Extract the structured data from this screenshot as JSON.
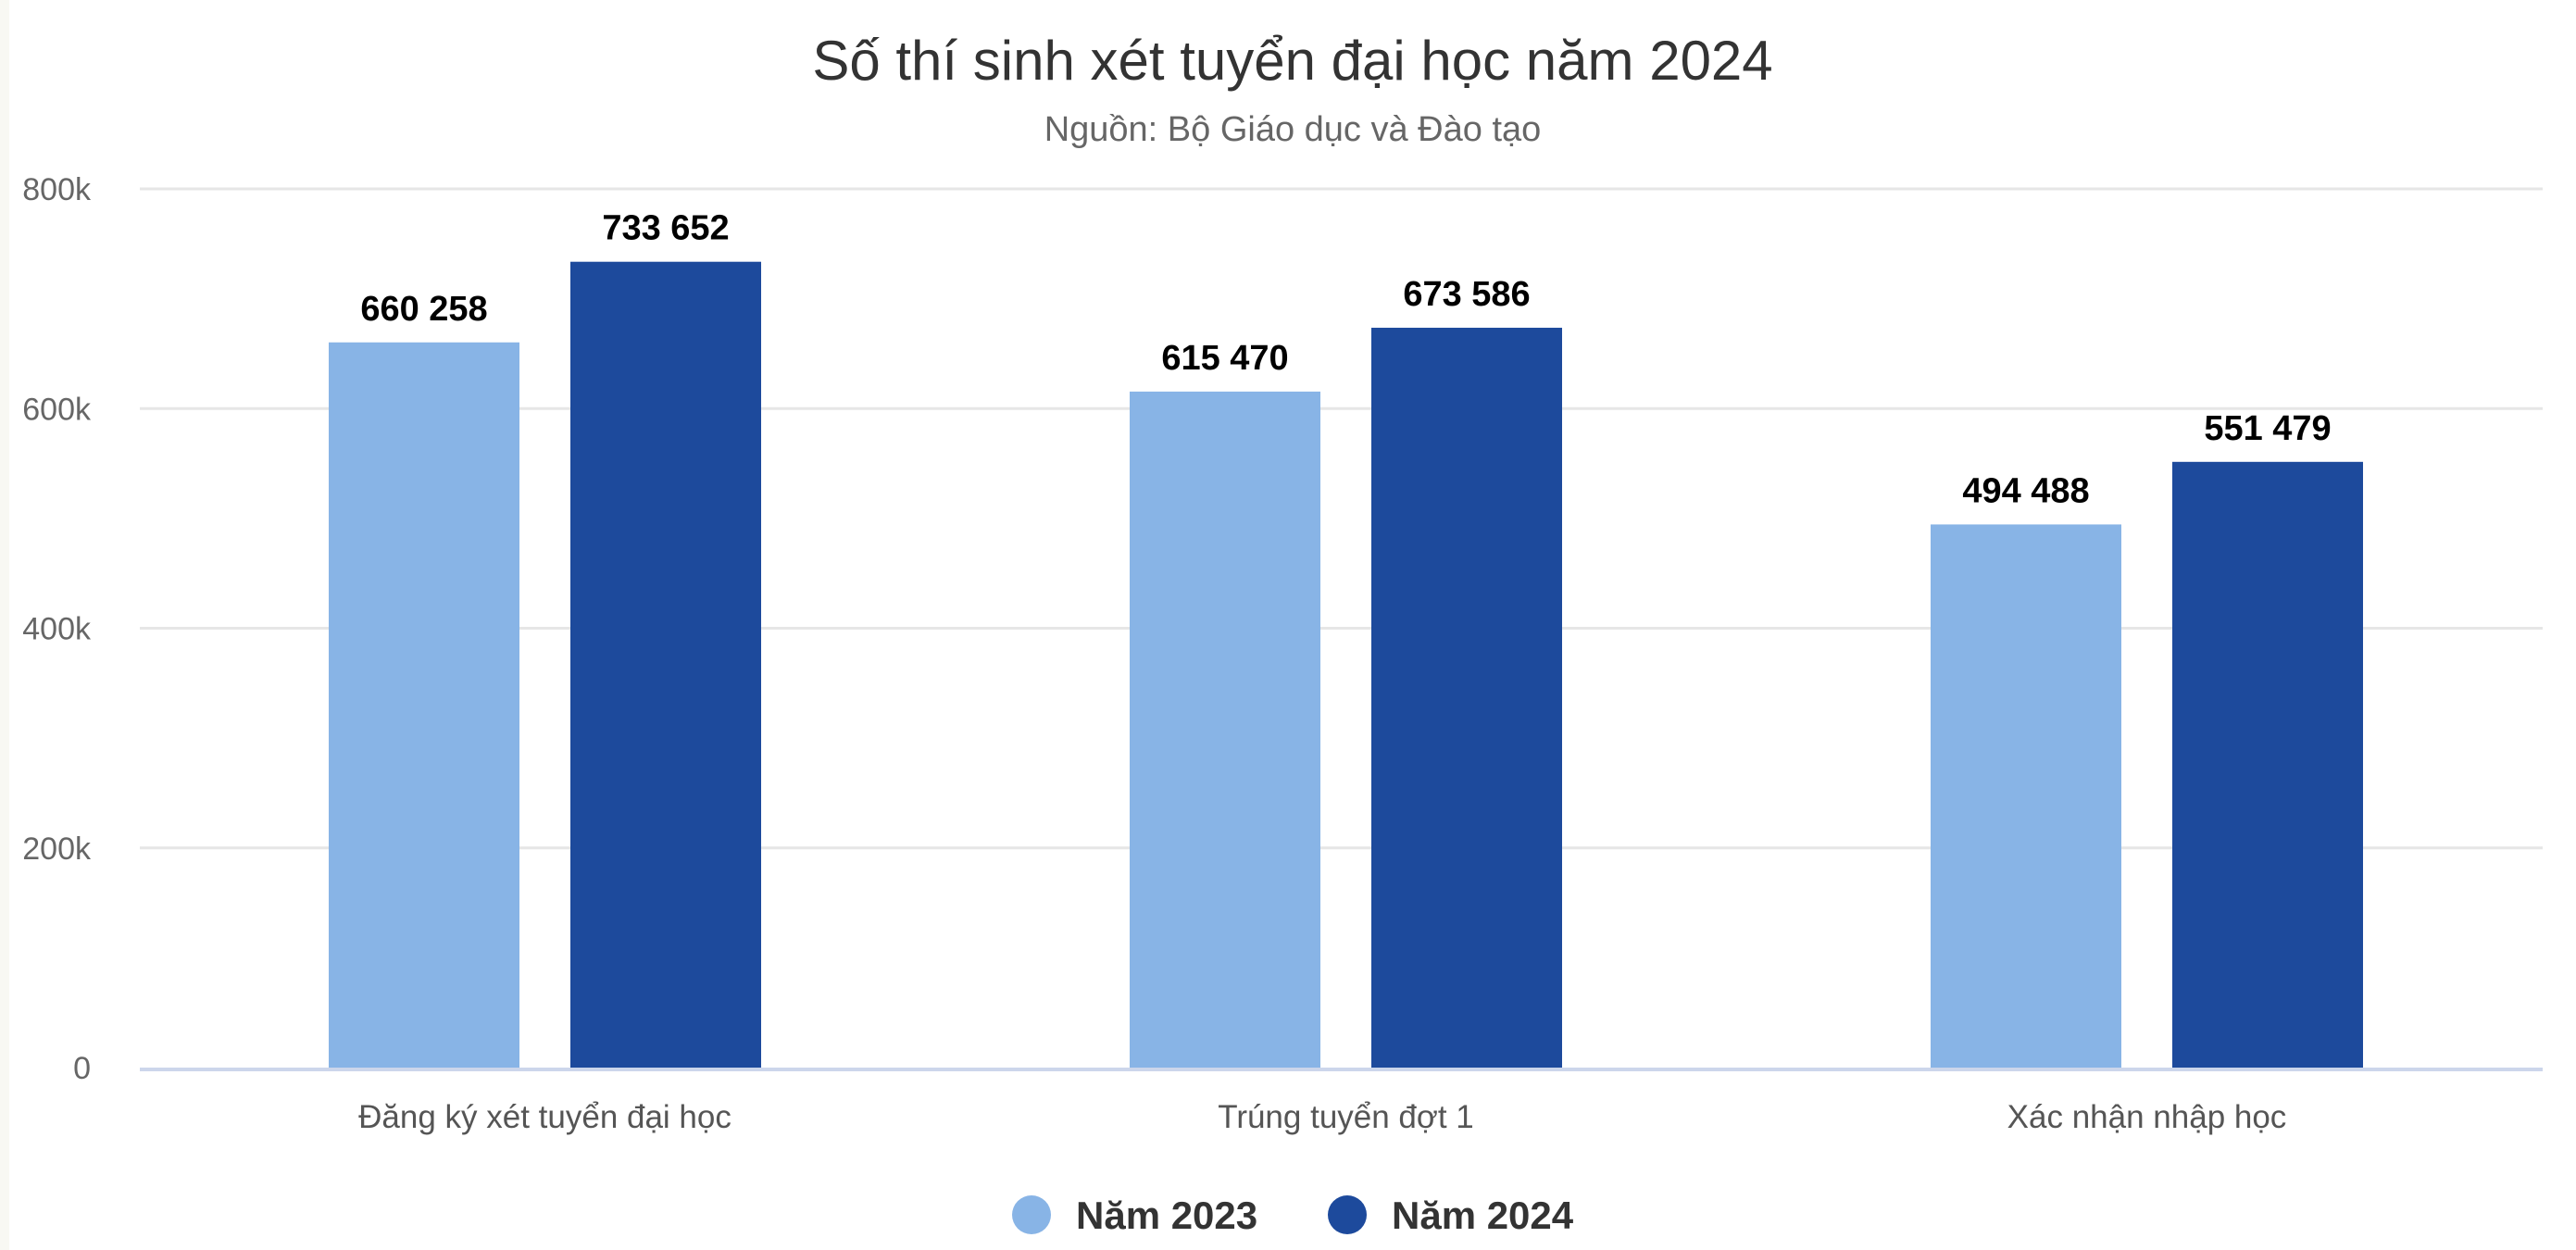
{
  "chart_data": {
    "type": "bar",
    "title": "Số thí sinh xét tuyển đại học năm 2024",
    "subtitle": "Nguồn: Bộ Giáo dục và Đào tạo",
    "xlabel": "",
    "ylabel": "",
    "ylim": [
      0,
      800000
    ],
    "yticks": [
      0,
      200000,
      400000,
      600000,
      800000
    ],
    "ytick_labels": [
      "0",
      "200k",
      "400k",
      "600k",
      "800k"
    ],
    "grid": true,
    "legend_position": "bottom-center",
    "categories": [
      "Đăng ký xét tuyển đại học",
      "Trúng tuyển đợt 1",
      "Xác nhận nhập học"
    ],
    "series": [
      {
        "name": "Năm 2023",
        "color": "#88b4e6",
        "values": [
          660258,
          615470,
          494488
        ],
        "labels": [
          "660 258",
          "615 470",
          "494 488"
        ]
      },
      {
        "name": "Năm 2024",
        "color": "#1d4a9c",
        "values": [
          733652,
          673586,
          551479
        ],
        "labels": [
          "733 652",
          "673 586",
          "551 479"
        ]
      }
    ]
  }
}
